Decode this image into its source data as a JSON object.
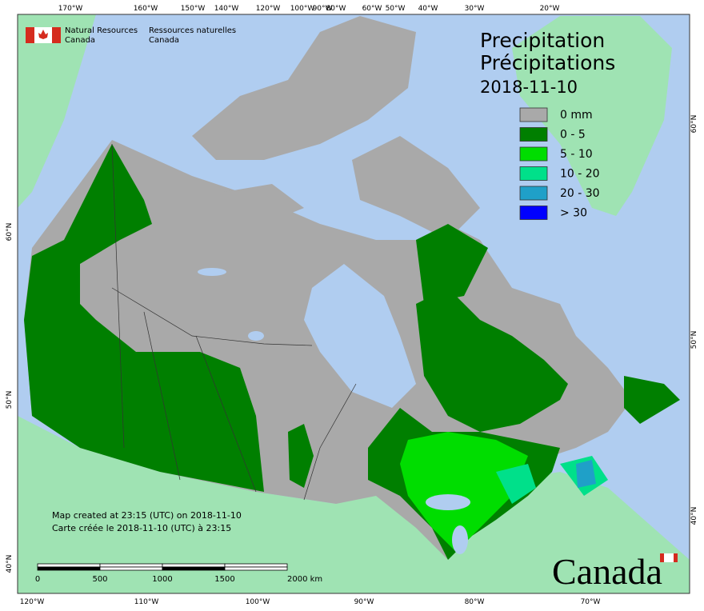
{
  "header": {
    "org_en": [
      "Natural Resources",
      "Canada"
    ],
    "org_fr": [
      "Ressources naturelles",
      "Canada"
    ]
  },
  "title": {
    "lines": [
      "Precipitation",
      "Précipitations"
    ],
    "date": "2018-11-10"
  },
  "legend": {
    "items": [
      {
        "label": "0 mm",
        "color": "#a9a9a9"
      },
      {
        "label": "0 - 5",
        "color": "#007f00"
      },
      {
        "label": "5 - 10",
        "color": "#00dd00"
      },
      {
        "label": "10 - 20",
        "color": "#00e08a"
      },
      {
        "label": "20 - 30",
        "color": "#1fa0c8"
      },
      {
        "label": "> 30",
        "color": "#0000ff"
      }
    ]
  },
  "graticule": {
    "top": [
      "170°W",
      "160°W",
      "150°W",
      "140°W",
      "120°W",
      "100°W",
      "90°W",
      "80°W",
      "60°W",
      "50°W",
      "40°W",
      "30°W",
      "20°W"
    ],
    "bottom": [
      "120°W",
      "110°W",
      "100°W",
      "90°W",
      "80°W",
      "70°W"
    ],
    "left": [
      "60°N",
      "50°N",
      "40°N"
    ],
    "right": [
      "60°N",
      "50°N",
      "40°N"
    ]
  },
  "credits": [
    "Map created at 23:15 (UTC) on 2018-11-10",
    "Carte créée le 2018-11-10 (UTC) à 23:15"
  ],
  "scale_bar": {
    "labels": [
      "0",
      "500",
      "1000",
      "1500",
      "2000 km"
    ]
  },
  "wordmark": "Canada"
}
